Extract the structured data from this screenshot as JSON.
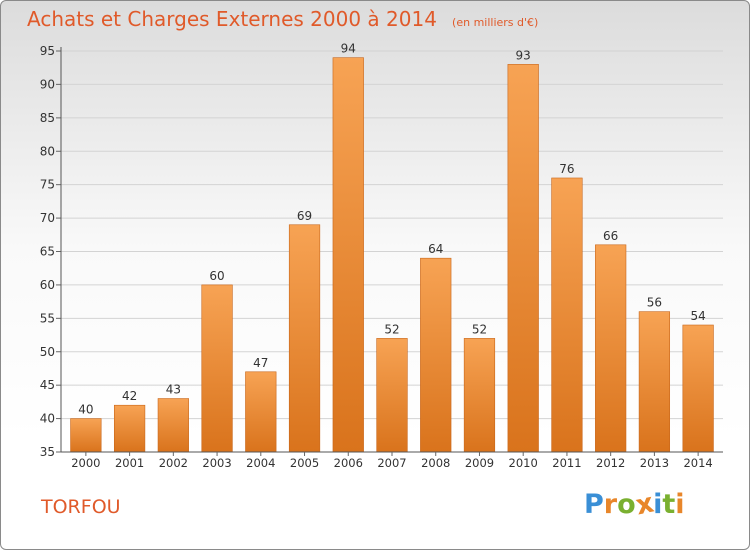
{
  "chart_data": {
    "type": "bar",
    "title": "Achats et Charges Externes 2000 à 2014",
    "subtitle": "(en milliers d'€)",
    "categories": [
      "2000",
      "2001",
      "2002",
      "2003",
      "2004",
      "2005",
      "2006",
      "2007",
      "2008",
      "2009",
      "2010",
      "2011",
      "2012",
      "2013",
      "2014"
    ],
    "values": [
      40,
      42,
      43,
      60,
      47,
      69,
      94,
      52,
      64,
      52,
      93,
      76,
      66,
      56,
      54
    ],
    "ylim": [
      35,
      95
    ],
    "yticks": [
      35,
      40,
      45,
      50,
      55,
      60,
      65,
      70,
      75,
      80,
      85,
      90,
      95
    ],
    "grid": true,
    "bar_color_top": "#f7a354",
    "bar_color_bottom": "#d9731c",
    "text_color": "#e05a2a"
  },
  "footer": {
    "commune": "TORFOU",
    "logo_letters": [
      "P",
      "r",
      "o",
      "x",
      "i",
      "t",
      "i"
    ],
    "logo_colors": [
      "#3a8fd6",
      "#e8862a",
      "#7ab030",
      "#e8862a",
      "#3a8fd6",
      "#7ab030",
      "#e8862a"
    ]
  }
}
